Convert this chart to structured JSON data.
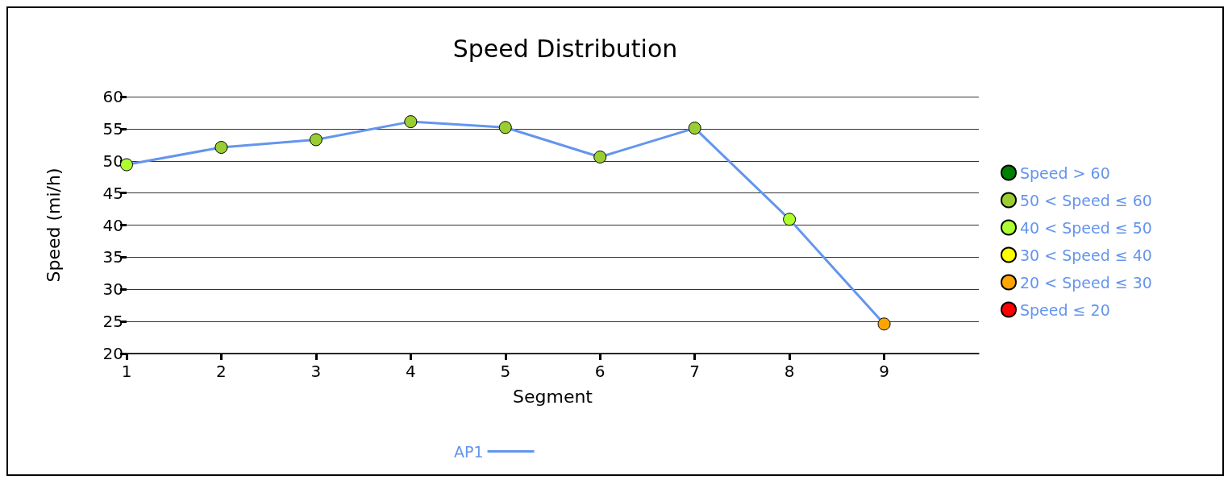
{
  "chart_data": {
    "type": "line",
    "title": "Speed Distribution",
    "xlabel": "Segment",
    "ylabel": "Speed (mi/h)",
    "x": [
      1,
      2,
      3,
      4,
      5,
      6,
      7,
      8,
      9
    ],
    "xlim": [
      1,
      10
    ],
    "xticks": [
      1,
      2,
      3,
      4,
      5,
      6,
      7,
      8,
      9
    ],
    "ylim": [
      20,
      60
    ],
    "yticks": [
      20,
      25,
      30,
      35,
      40,
      45,
      50,
      55,
      60
    ],
    "grid": "y",
    "legend": "right",
    "marker": "circle",
    "series": [
      {
        "name": "AP1",
        "color": "#6495ed",
        "values": [
          49.4,
          52.1,
          53.3,
          56.1,
          55.2,
          50.6,
          55.1,
          40.9,
          24.6
        ],
        "colors": [
          "#adff2f",
          "#9acd32",
          "#9acd32",
          "#9acd32",
          "#9acd32",
          "#9acd32",
          "#9acd32",
          "#adff2f",
          "#ffa500"
        ]
      },
      {
        "name": "Speed > 60",
        "type": "scatter",
        "color": "#008000",
        "values": [
          null,
          null,
          null,
          null,
          null,
          null,
          null,
          null,
          null
        ]
      },
      {
        "name": "50 < Speed ≤ 60",
        "type": "scatter",
        "color": "#9acd32",
        "values": [
          null,
          null,
          null,
          null,
          null,
          null,
          null,
          null,
          null
        ]
      },
      {
        "name": "40 < Speed ≤ 50",
        "type": "scatter",
        "color": "#adff2f",
        "values": [
          null,
          null,
          null,
          null,
          null,
          null,
          null,
          null,
          null
        ]
      },
      {
        "name": "30 < Speed ≤ 40",
        "type": "scatter",
        "color": "#ffff00",
        "values": [
          null,
          null,
          null,
          null,
          null,
          null,
          null,
          null,
          null
        ]
      },
      {
        "name": "20 < Speed ≤ 30",
        "type": "scatter",
        "color": "#ffa500",
        "values": [
          null,
          null,
          null,
          null,
          null,
          null,
          null,
          null,
          null
        ]
      },
      {
        "name": "Speed ≤ 20",
        "type": "scatter",
        "color": "#ff0000",
        "values": [
          null,
          null,
          null,
          null,
          null,
          null,
          null,
          null,
          null
        ]
      }
    ]
  }
}
